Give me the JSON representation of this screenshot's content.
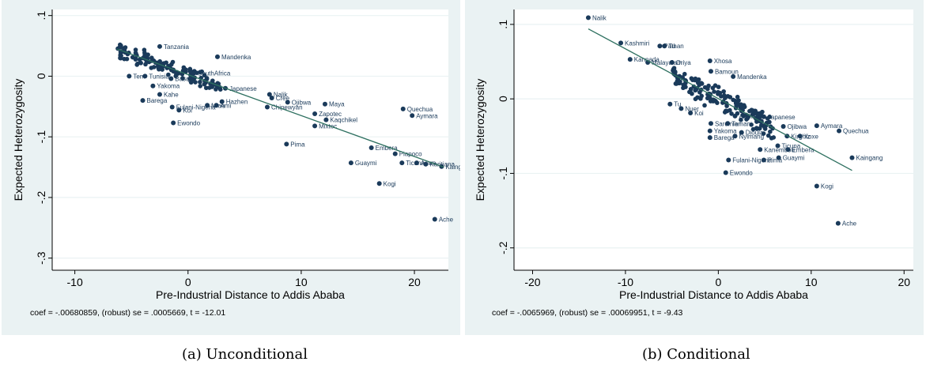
{
  "chart_data": [
    {
      "type": "scatter",
      "caption": "(a)  Unconditional",
      "xlabel": "Pre-Industrial Distance to Addis Ababa",
      "ylabel": "Expected Heterozygosity",
      "xlim": [
        -12,
        23
      ],
      "ylim": [
        -0.32,
        0.11
      ],
      "xticks": [
        -10,
        0,
        10,
        20
      ],
      "yticks": [
        0.1,
        0,
        -0.1,
        -0.2,
        -0.3
      ],
      "xtick_labels": [
        "-10",
        "0",
        "10",
        "20"
      ],
      "ytick_labels": [
        ".1",
        "0",
        "-.1",
        "-.2",
        "-.3"
      ],
      "fit_line": {
        "x": [
          -6.3,
          22.6
        ],
        "y": [
          0.045,
          -0.15
        ]
      },
      "stats_text": "coef = -.00680859, (robust) se = .0005669, t = -12.01",
      "labeled_points": [
        {
          "label": "Tanzania",
          "x": -2.5,
          "y": 0.049
        },
        {
          "label": "Mandenka",
          "x": 2.6,
          "y": 0.032
        },
        {
          "label": "SouthAfrica",
          "x": 0.5,
          "y": 0.005
        },
        {
          "label": "Tem",
          "x": -5.2,
          "y": 0.0
        },
        {
          "label": "Tunisia",
          "x": -3.8,
          "y": 0.0
        },
        {
          "label": "Basque",
          "x": -1.5,
          "y": -0.004
        },
        {
          "label": "Japanese",
          "x": 3.3,
          "y": -0.02
        },
        {
          "label": "Yakoma",
          "x": -3.1,
          "y": -0.016
        },
        {
          "label": "Nalik",
          "x": 7.2,
          "y": -0.03
        },
        {
          "label": "Cree",
          "x": 7.4,
          "y": -0.036
        },
        {
          "label": "Kahe",
          "x": -2.5,
          "y": -0.03
        },
        {
          "label": "Barega",
          "x": -4.0,
          "y": -0.04
        },
        {
          "label": "Fulani-Nigeria",
          "x": -1.4,
          "y": -0.051
        },
        {
          "label": "Koi",
          "x": -0.8,
          "y": -0.056
        },
        {
          "label": "Hazhen",
          "x": 3.0,
          "y": -0.042
        },
        {
          "label": "Ami",
          "x": 2.5,
          "y": -0.048
        },
        {
          "label": "Miao",
          "x": 1.7,
          "y": -0.048
        },
        {
          "label": "Ojibwa",
          "x": 8.8,
          "y": -0.043
        },
        {
          "label": "Chipewyan",
          "x": 7.0,
          "y": -0.051
        },
        {
          "label": "Maya",
          "x": 12.1,
          "y": -0.046
        },
        {
          "label": "Quechua",
          "x": 19.0,
          "y": -0.054
        },
        {
          "label": "Aymara",
          "x": 19.8,
          "y": -0.065
        },
        {
          "label": "Zapotec",
          "x": 11.2,
          "y": -0.062
        },
        {
          "label": "Kaqchikel",
          "x": 12.2,
          "y": -0.072
        },
        {
          "label": "Mixtec",
          "x": 11.2,
          "y": -0.082
        },
        {
          "label": "Ewondo",
          "x": -1.3,
          "y": -0.077
        },
        {
          "label": "Pima",
          "x": 8.7,
          "y": -0.112
        },
        {
          "label": "Embera",
          "x": 16.2,
          "y": -0.118
        },
        {
          "label": "Piapoco",
          "x": 18.3,
          "y": -0.128
        },
        {
          "label": "Guaymi",
          "x": 14.4,
          "y": -0.143
        },
        {
          "label": "Ticuna",
          "x": 18.9,
          "y": -0.143
        },
        {
          "label": "Arara",
          "x": 20.2,
          "y": -0.143
        },
        {
          "label": "Karitiana",
          "x": 21.0,
          "y": -0.145
        },
        {
          "label": "Kaingang",
          "x": 22.4,
          "y": -0.149
        },
        {
          "label": "Kogi",
          "x": 16.9,
          "y": -0.177
        },
        {
          "label": "Ache",
          "x": 21.8,
          "y": -0.236
        }
      ]
    },
    {
      "type": "scatter",
      "caption": "(b)  Conditional",
      "xlabel": "Pre-Industrial Distance to Addis Ababa",
      "ylabel": "Expected Heterozygosity",
      "xlim": [
        -22,
        21
      ],
      "ylim": [
        -0.23,
        0.12
      ],
      "xticks": [
        -20,
        -10,
        0,
        10,
        20
      ],
      "yticks": [
        0.1,
        0,
        -0.1,
        -0.2
      ],
      "xtick_labels": [
        "-20",
        "-10",
        "0",
        "10",
        "20"
      ],
      "ytick_labels": [
        ".1",
        "0",
        "-.1",
        "-.2"
      ],
      "fit_line": {
        "x": [
          -14.0,
          14.4
        ],
        "y": [
          0.094,
          -0.096
        ]
      },
      "stats_text": "coef = -.0065969, (robust) se = .00069951, t = -9.43",
      "labeled_points": [
        {
          "label": "Nalik",
          "x": -14.0,
          "y": 0.109
        },
        {
          "label": "Kashmiri",
          "x": -10.5,
          "y": 0.075
        },
        {
          "label": "Pathan",
          "x": -6.3,
          "y": 0.071
        },
        {
          "label": "Tu",
          "x": -5.8,
          "y": 0.071
        },
        {
          "label": "Kannada",
          "x": -9.5,
          "y": 0.053
        },
        {
          "label": "Malayalam",
          "x": -7.6,
          "y": 0.049
        },
        {
          "label": "Oriya",
          "x": -5.0,
          "y": 0.049
        },
        {
          "label": "Xhosa",
          "x": -0.9,
          "y": 0.051
        },
        {
          "label": "Bamoun",
          "x": -0.8,
          "y": 0.037
        },
        {
          "label": "Mandenka",
          "x": 1.6,
          "y": 0.03
        },
        {
          "label": "Tu",
          "x": -5.2,
          "y": -0.007
        },
        {
          "label": "Nuer",
          "x": -4.0,
          "y": -0.013
        },
        {
          "label": "Koi",
          "x": -3.0,
          "y": -0.019
        },
        {
          "label": "Amhara",
          "x": 1.8,
          "y": -0.023
        },
        {
          "label": "Japanese",
          "x": 4.9,
          "y": -0.024
        },
        {
          "label": "Sardinian",
          "x": -0.8,
          "y": -0.033
        },
        {
          "label": "Temani",
          "x": 1.0,
          "y": -0.033
        },
        {
          "label": "Yakoma",
          "x": -0.9,
          "y": -0.043
        },
        {
          "label": "Dioula",
          "x": 2.5,
          "y": -0.045
        },
        {
          "label": "Nyimang",
          "x": 1.8,
          "y": -0.05
        },
        {
          "label": "Barega",
          "x": -0.9,
          "y": -0.052
        },
        {
          "label": "Ojibwa",
          "x": 7.0,
          "y": -0.037
        },
        {
          "label": "Aymara",
          "x": 10.6,
          "y": -0.036
        },
        {
          "label": "Quechua",
          "x": 13.0,
          "y": -0.043
        },
        {
          "label": "Kirghiz",
          "x": 7.4,
          "y": -0.05
        },
        {
          "label": "Xoxe",
          "x": 8.8,
          "y": -0.05
        },
        {
          "label": "Kanembou",
          "x": 4.5,
          "y": -0.068
        },
        {
          "label": "Embera",
          "x": 7.5,
          "y": -0.068
        },
        {
          "label": "Ticuna",
          "x": 6.4,
          "y": -0.063
        },
        {
          "label": "Guaymi",
          "x": 6.5,
          "y": -0.079
        },
        {
          "label": "Fulani-Nigeria",
          "x": 1.1,
          "y": -0.082
        },
        {
          "label": "Pima",
          "x": 4.9,
          "y": -0.082
        },
        {
          "label": "Kaingang",
          "x": 14.4,
          "y": -0.079
        },
        {
          "label": "Ewondo",
          "x": 0.8,
          "y": -0.099
        },
        {
          "label": "Kogi",
          "x": 10.6,
          "y": -0.117
        },
        {
          "label": "Ache",
          "x": 12.9,
          "y": -0.167
        }
      ]
    }
  ]
}
